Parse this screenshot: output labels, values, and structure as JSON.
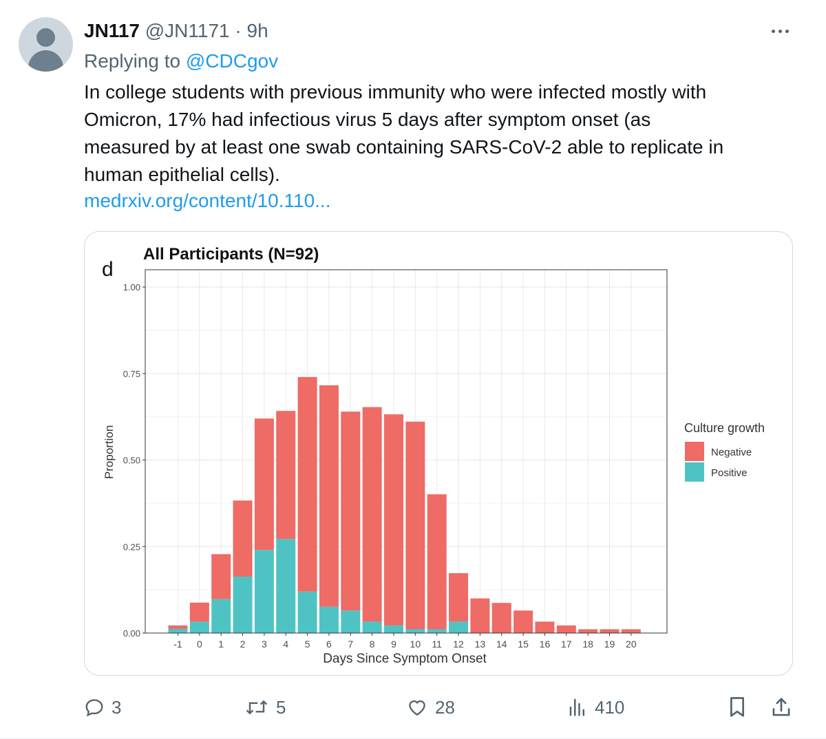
{
  "tweet": {
    "display_name": "JN117",
    "handle": "@JN1171",
    "separator": "·",
    "time": "9h",
    "replying_prefix": "Replying to",
    "replying_to": "@CDCgov",
    "lines": [
      "In college students with previous immunity who were infected mostly with",
      "Omicron, 17% had infectious virus 5 days after symptom onset (as",
      "measured by at least one swab containing SARS-CoV-2 able to replicate in",
      "human epithelial cells)."
    ],
    "link": "medrxiv.org/content/10.110...",
    "icons": {
      "avatar": "default-avatar-icon",
      "more": "more-options-icon"
    }
  },
  "chart_data": {
    "type": "bar",
    "stacked": true,
    "panel_letter": "d",
    "title": "All Participants (N=92)",
    "xlabel": "Days Since Symptom Onset",
    "ylabel": "Proportion",
    "ylim": [
      0,
      1.05
    ],
    "yticks": [
      "0.00",
      "0.25",
      "0.50",
      "0.75",
      "1.00"
    ],
    "ytick_values": [
      0,
      0.25,
      0.5,
      0.75,
      1.0
    ],
    "categories": [
      "-1",
      "0",
      "1",
      "2",
      "3",
      "4",
      "5",
      "6",
      "7",
      "8",
      "9",
      "10",
      "11",
      "12",
      "13",
      "14",
      "15",
      "16",
      "17",
      "18",
      "19",
      "20"
    ],
    "series": [
      {
        "name": "Negative",
        "color": "#ee6b66",
        "values": [
          0.01,
          0.055,
          0.13,
          0.22,
          0.38,
          0.37,
          0.62,
          0.64,
          0.575,
          0.62,
          0.61,
          0.6,
          0.39,
          0.14,
          0.1,
          0.087,
          0.065,
          0.033,
          0.022,
          0.011,
          0.011,
          0.011
        ]
      },
      {
        "name": "Positive",
        "color": "#4fc3c4",
        "values": [
          0.012,
          0.033,
          0.098,
          0.163,
          0.24,
          0.272,
          0.12,
          0.076,
          0.065,
          0.033,
          0.022,
          0.011,
          0.011,
          0.033,
          0,
          0,
          0,
          0,
          0,
          0,
          0,
          0
        ]
      }
    ],
    "legend_title": "Culture growth",
    "legend_position": "right",
    "grid": true
  },
  "actions": {
    "reply_count": "3",
    "retweet_count": "5",
    "like_count": "28",
    "view_count": "410",
    "icons": [
      "reply-icon",
      "retweet-icon",
      "like-icon",
      "views-icon",
      "bookmark-icon",
      "share-icon"
    ]
  },
  "colors": {
    "accent": "#1d9bf0",
    "secondary_text": "#536471",
    "border": "#cfd9de"
  }
}
